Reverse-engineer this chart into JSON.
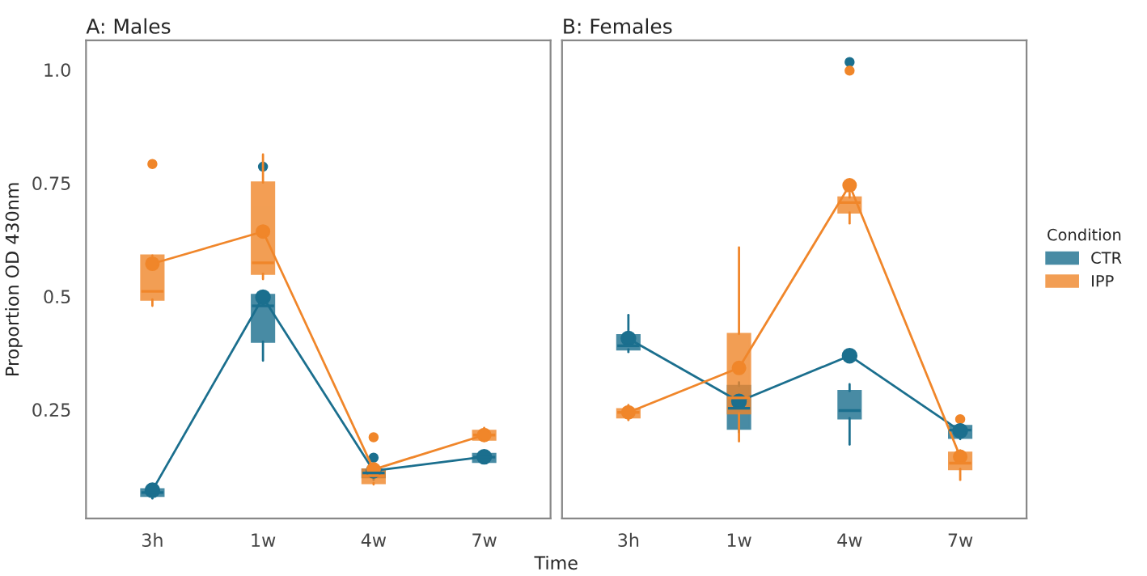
{
  "chart_data": [
    {
      "type": "box",
      "title": "A: Males",
      "xlabel": "Time",
      "ylabel": "Proportion OD 430nm",
      "categories": [
        "3h",
        "1w",
        "4w",
        "7w"
      ],
      "ylim": [
        0.01,
        1.065
      ],
      "yticks": [
        0.25,
        0.5,
        0.75,
        {
          "value": 1.0,
          "label": "1.0"
        }
      ],
      "grid": false,
      "legend": "right",
      "series": [
        {
          "name": "CTR",
          "color": "#1b6f8e",
          "boxes": [
            {
              "low": 0.054,
              "q1": 0.06,
              "median": 0.067,
              "q3": 0.074,
              "high": 0.078
            },
            {
              "low": 0.358,
              "q1": 0.4,
              "median": 0.479,
              "q3": 0.503,
              "high": 0.503,
              "outliers": [
                0.786
              ]
            },
            {
              "low": 0.095,
              "q1": 0.101,
              "median": 0.11,
              "q3": 0.118,
              "high": 0.122,
              "outliers": [
                0.144
              ]
            },
            {
              "low": 0.132,
              "q1": 0.135,
              "median": 0.145,
              "q3": 0.152,
              "high": 0.155
            }
          ]
        },
        {
          "name": "IPP",
          "color": "#f0862a",
          "boxes": [
            {
              "low": 0.479,
              "q1": 0.493,
              "median": 0.511,
              "q3": 0.59,
              "high": 0.59,
              "outliers": [
                0.792
              ]
            },
            {
              "low": 0.538,
              "q1": 0.55,
              "median": 0.574,
              "q3": 0.751,
              "high": 0.813
            },
            {
              "low": 0.085,
              "q1": 0.088,
              "median": 0.104,
              "q3": 0.118,
              "high": 0.125,
              "outliers": [
                0.189
              ]
            },
            {
              "low": 0.181,
              "q1": 0.184,
              "median": 0.194,
              "q3": 0.203,
              "high": 0.21
            }
          ]
        },
        {
          "type": "line",
          "color": "#1b6f8e",
          "marker": "circle",
          "values": [
            0.072,
            0.498,
            0.115,
            0.146
          ]
        },
        {
          "type": "line",
          "color": "#f0862a",
          "marker": "circle",
          "values": [
            0.572,
            0.643,
            0.118,
            0.194
          ]
        }
      ]
    },
    {
      "type": "box",
      "title": "B: Females",
      "legend_title": "Condition",
      "categories": [
        "3h",
        "1w",
        "4w",
        "7w"
      ],
      "ylim": [
        0.01,
        1.065
      ],
      "tick_labels": "x",
      "grid": false,
      "legend": "right",
      "series": [
        {
          "name": "CTR",
          "color": "#1b6f8e",
          "boxes": [
            {
              "low": 0.377,
              "q1": 0.383,
              "median": 0.391,
              "q3": 0.414,
              "high": 0.459
            },
            {
              "low": 0.2,
              "q1": 0.208,
              "median": 0.253,
              "q3": 0.302,
              "high": 0.31
            },
            {
              "low": 0.173,
              "q1": 0.231,
              "median": 0.248,
              "q3": 0.291,
              "high": 0.306,
              "outliers": [
                1.017
              ]
            },
            {
              "low": 0.185,
              "q1": 0.188,
              "median": 0.205,
              "q3": 0.214,
              "high": 0.22
            }
          ]
        },
        {
          "name": "IPP",
          "color": "#f0862a",
          "boxes": [
            {
              "low": 0.227,
              "q1": 0.233,
              "median": 0.244,
              "q3": 0.251,
              "high": 0.26
            },
            {
              "low": 0.18,
              "q1": 0.242,
              "median": 0.276,
              "q3": 0.417,
              "high": 0.608
            },
            {
              "low": 0.661,
              "q1": 0.685,
              "median": 0.707,
              "q3": 0.718,
              "high": 0.727,
              "outliers": [
                0.998
              ]
            },
            {
              "low": 0.095,
              "q1": 0.119,
              "median": 0.132,
              "q3": 0.155,
              "high": 0.16,
              "outliers": [
                0.229
              ]
            }
          ]
        },
        {
          "type": "line",
          "color": "#1b6f8e",
          "marker": "circle",
          "values": [
            0.407,
            0.268,
            0.369,
            0.203
          ]
        },
        {
          "type": "line",
          "color": "#f0862a",
          "marker": "circle",
          "values": [
            0.244,
            0.342,
            0.745,
            0.146
          ]
        }
      ]
    }
  ]
}
